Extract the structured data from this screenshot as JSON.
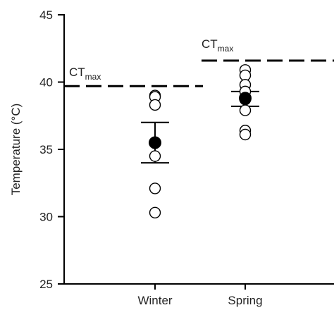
{
  "chart_data": {
    "type": "scatter",
    "title": "",
    "ylabel": "Temperature (°C)",
    "xlabel": "",
    "ylim": [
      25,
      45
    ],
    "yticks": [
      25,
      30,
      35,
      40,
      45
    ],
    "categories": [
      "Winter",
      "Spring"
    ],
    "grid": false,
    "series": [
      {
        "category": "Winter",
        "points": [
          39.0,
          38.9,
          38.3,
          34.5,
          32.1,
          30.3
        ],
        "mean": 35.5,
        "error_low": 34.0,
        "error_high": 37.0,
        "ctmax": 39.7
      },
      {
        "category": "Spring",
        "points": [
          40.9,
          40.5,
          39.8,
          39.3,
          38.7,
          37.9,
          36.4,
          36.1
        ],
        "mean": 38.8,
        "error_low": 38.2,
        "error_high": 39.3,
        "ctmax": 41.6
      }
    ],
    "threshold_label": {
      "main": "CT",
      "sub": "max"
    }
  }
}
